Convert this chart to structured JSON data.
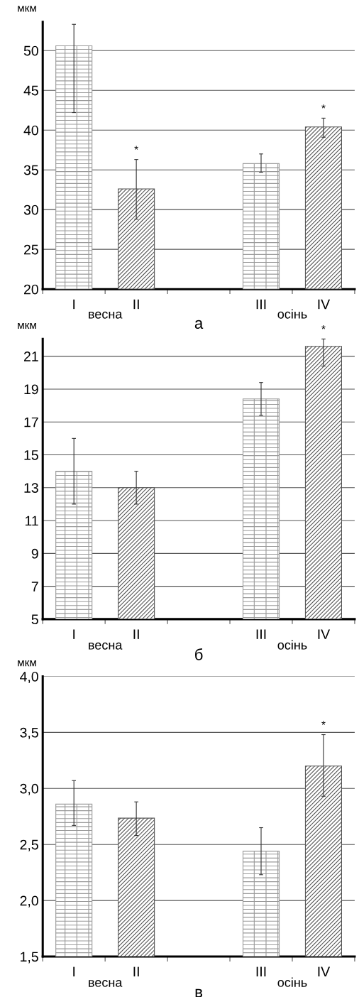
{
  "chart_data": [
    {
      "type": "bar",
      "title": "а",
      "ylabel": "мкм",
      "categories": [
        "I",
        "II",
        null,
        "III",
        "IV"
      ],
      "values": [
        50.6,
        32.6,
        null,
        35.8,
        40.4
      ],
      "colors": [
        "#9a9a9a",
        "#555555",
        null,
        "#9a9a9a",
        "#555555"
      ],
      "errors": [
        [
          42.2,
          53.3
        ],
        [
          28.8,
          36.3
        ],
        null,
        [
          34.7,
          37.0
        ],
        [
          39.1,
          41.5
        ]
      ],
      "ylim": [
        20,
        53.6
      ],
      "yticks": [
        20,
        25,
        30,
        35,
        40,
        45,
        50
      ],
      "grid": "y",
      "annotations": [
        "весна",
        "осінь",
        {
          "text": "*",
          "x": "II",
          "y": 36.3
        },
        {
          "text": "*",
          "x": "IV",
          "y": 41.5
        }
      ]
    },
    {
      "type": "bar",
      "title": "б",
      "ylabel": "мкм",
      "categories": [
        "I",
        "II",
        null,
        "III",
        "IV"
      ],
      "values": [
        14.0,
        13.0,
        null,
        18.4,
        21.6
      ],
      "colors": [
        "#9a9a9a",
        "#555555",
        null,
        "#9a9a9a",
        "#555555"
      ],
      "errors": [
        [
          12.0,
          16.0
        ],
        [
          12.0,
          14.0
        ],
        null,
        [
          17.4,
          19.4
        ],
        [
          20.4,
          22.05
        ]
      ],
      "ylim": [
        5,
        22.05
      ],
      "yticks": [
        5,
        7,
        9,
        11,
        13,
        15,
        17,
        19,
        21
      ],
      "grid": "y",
      "annotations": [
        "весна",
        "осінь",
        {
          "text": "*",
          "x": "IV",
          "y": 22.05
        }
      ]
    },
    {
      "type": "bar",
      "title": "в",
      "ylabel": "мкм",
      "categories": [
        "I",
        "II",
        null,
        "III",
        "IV"
      ],
      "values": [
        2.86,
        2.735,
        null,
        2.44,
        3.2
      ],
      "colors": [
        "#9a9a9a",
        "#555555",
        null,
        "#9a9a9a",
        "#555555"
      ],
      "errors": [
        [
          2.67,
          3.07
        ],
        [
          2.58,
          2.88
        ],
        null,
        [
          2.23,
          2.65
        ],
        [
          2.93,
          3.48
        ]
      ],
      "ylim": [
        1.5,
        4.0
      ],
      "yticks": [
        {
          "value": 1.5,
          "label": "1,5"
        },
        {
          "value": 2.0,
          "label": "2,0"
        },
        {
          "value": 2.5,
          "label": "2,5"
        },
        {
          "value": 3.0,
          "label": "3,0"
        },
        {
          "value": 3.5,
          "label": "3,5"
        },
        {
          "value": 4.0,
          "label": "4,0"
        }
      ],
      "grid": "y",
      "annotations": [
        "весна",
        "осінь",
        {
          "text": "*",
          "x": "IV",
          "y": 3.48
        }
      ]
    }
  ]
}
